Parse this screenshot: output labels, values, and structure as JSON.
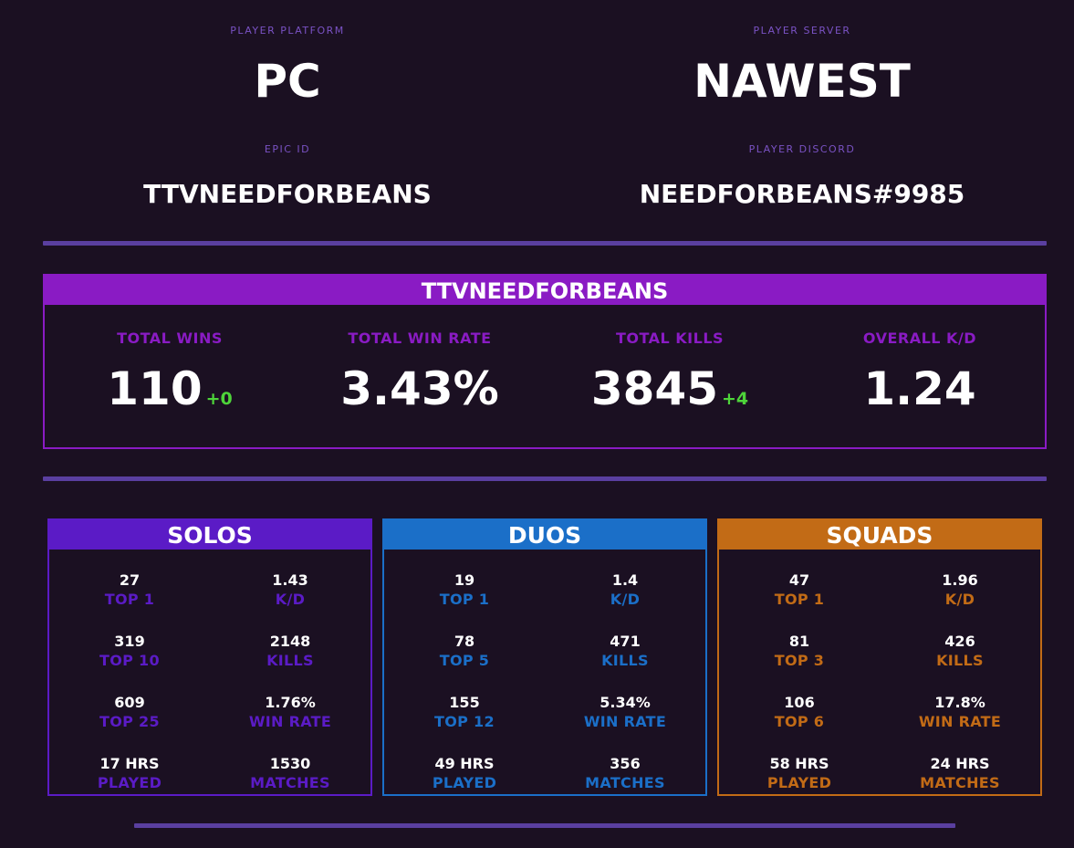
{
  "profile": {
    "platform_label": "PLAYER PLATFORM",
    "platform": "PC",
    "server_label": "PLAYER SERVER",
    "server": "NAWEST",
    "epic_label": "EPIC ID",
    "epic_id": "TTVNEEDFORBEANS",
    "discord_label": "PLAYER DISCORD",
    "discord": "NEEDFORBEANS#9985"
  },
  "summary": {
    "title": "TTVNEEDFORBEANS",
    "stats": [
      {
        "label": "TOTAL WINS",
        "value": "110",
        "delta": "+0"
      },
      {
        "label": "TOTAL WIN RATE",
        "value": "3.43%",
        "delta": ""
      },
      {
        "label": "TOTAL KILLS",
        "value": "3845",
        "delta": "+4"
      },
      {
        "label": "OVERALL K/D",
        "value": "1.24",
        "delta": ""
      }
    ]
  },
  "colors": {
    "solos": "#5b1bc6",
    "duos": "#1b6fc8",
    "squads": "#c26b16",
    "accent": "#8a1bc4",
    "delta": "#4ed43a"
  },
  "modes": [
    {
      "key": "solos",
      "title": "SOLOS",
      "cells": [
        {
          "value": "27",
          "label": "TOP 1"
        },
        {
          "value": "1.43",
          "label": "K/D"
        },
        {
          "value": "319",
          "label": "TOP 10"
        },
        {
          "value": "2148",
          "label": "KILLS"
        },
        {
          "value": "609",
          "label": "TOP 25"
        },
        {
          "value": "1.76%",
          "label": "WIN RATE"
        },
        {
          "value": "17 HRS",
          "label": "PLAYED"
        },
        {
          "value": "1530",
          "label": "MATCHES"
        }
      ]
    },
    {
      "key": "duos",
      "title": "DUOS",
      "cells": [
        {
          "value": "19",
          "label": "TOP 1"
        },
        {
          "value": "1.4",
          "label": "K/D"
        },
        {
          "value": "78",
          "label": "TOP 5"
        },
        {
          "value": "471",
          "label": "KILLS"
        },
        {
          "value": "155",
          "label": "TOP 12"
        },
        {
          "value": "5.34%",
          "label": "WIN RATE"
        },
        {
          "value": "49 HRS",
          "label": "PLAYED"
        },
        {
          "value": "356",
          "label": "MATCHES"
        }
      ]
    },
    {
      "key": "squads",
      "title": "SQUADS",
      "cells": [
        {
          "value": "47",
          "label": "TOP 1"
        },
        {
          "value": "1.96",
          "label": "K/D"
        },
        {
          "value": "81",
          "label": "TOP 3"
        },
        {
          "value": "426",
          "label": "KILLS"
        },
        {
          "value": "106",
          "label": "TOP 6"
        },
        {
          "value": "17.8%",
          "label": "WIN RATE"
        },
        {
          "value": "58 HRS",
          "label": "PLAYED"
        },
        {
          "value": "24 HRS",
          "label": "MATCHES"
        }
      ]
    }
  ]
}
